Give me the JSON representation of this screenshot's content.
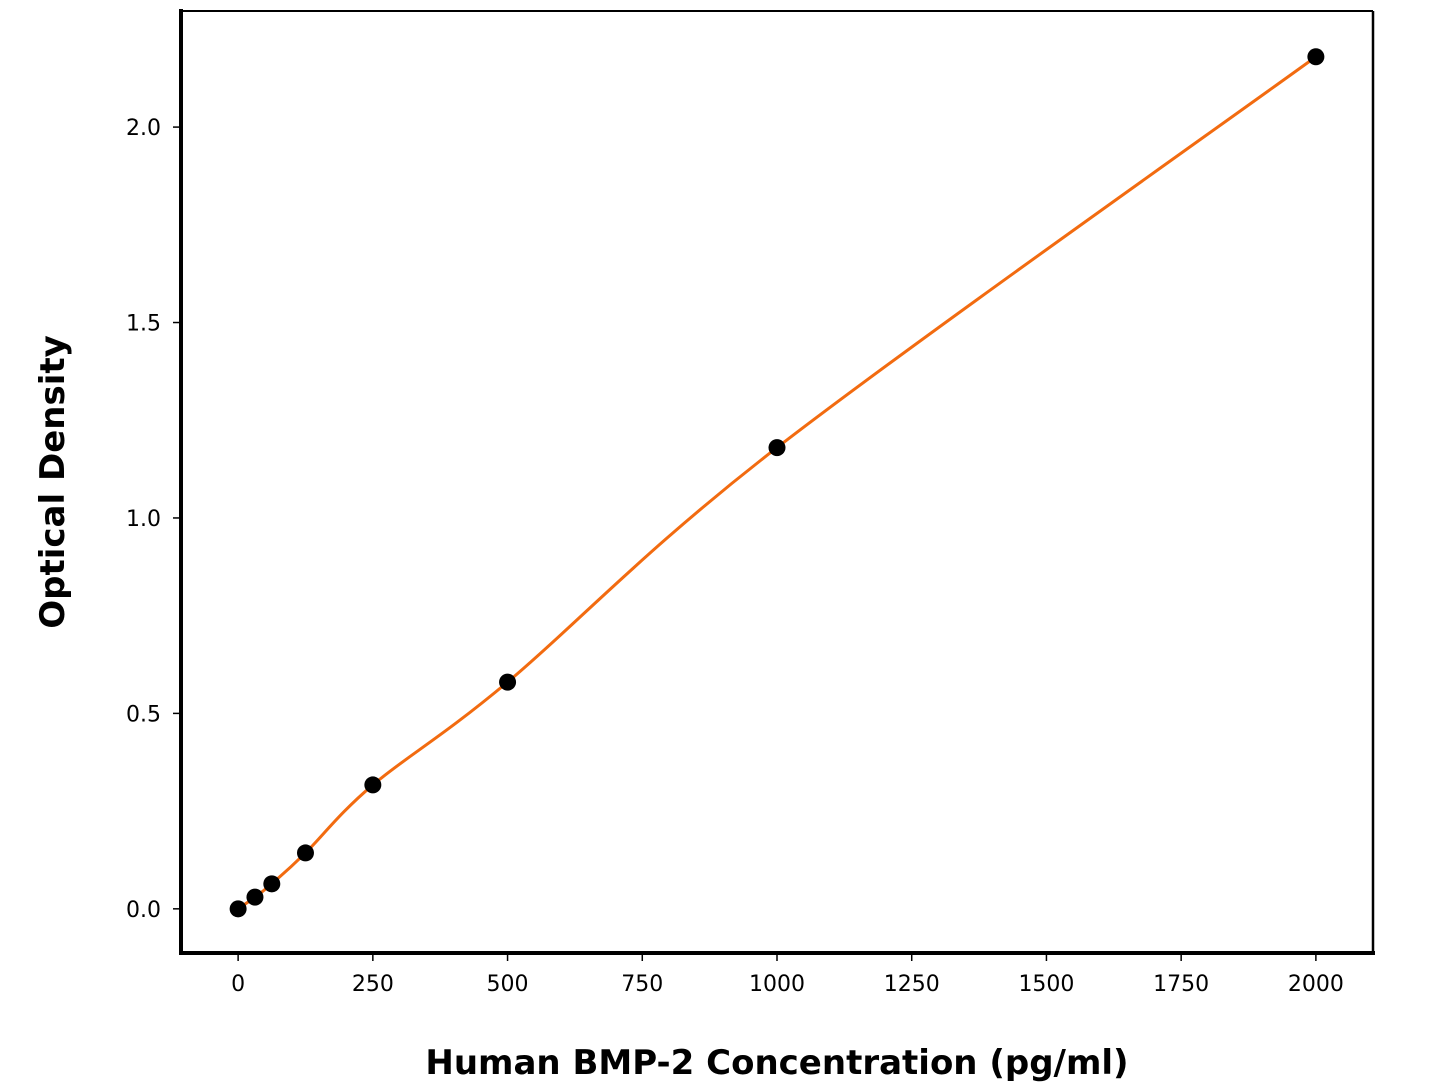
{
  "chart_data": {
    "type": "line",
    "title": "",
    "xlabel": "Human BMP-2 Concentration (pg/ml)",
    "ylabel": "Optical Density",
    "xlim": [
      -106,
      2106
    ],
    "ylim": [
      -0.113,
      2.297
    ],
    "xticks": [
      0,
      250,
      500,
      750,
      1000,
      1250,
      1500,
      1750,
      2000
    ],
    "xtick_labels": [
      "0",
      "250",
      "500",
      "750",
      "1000",
      "1250",
      "1500",
      "1750",
      "2000"
    ],
    "yticks": [
      0.0,
      0.5,
      1.0,
      1.5,
      2.0
    ],
    "ytick_labels": [
      "0.0",
      "0.5",
      "1.0",
      "1.5",
      "2.0"
    ],
    "grid": false,
    "series": [
      {
        "x": [
          0,
          31.25,
          62.5,
          125,
          250,
          500,
          1000,
          2000
        ],
        "y": [
          0.0,
          0.03,
          0.064,
          0.143,
          0.317,
          0.58,
          1.18,
          2.18
        ],
        "marker_color": "#000000",
        "line_color": "#f26b10",
        "line": "fitted curve"
      }
    ]
  }
}
